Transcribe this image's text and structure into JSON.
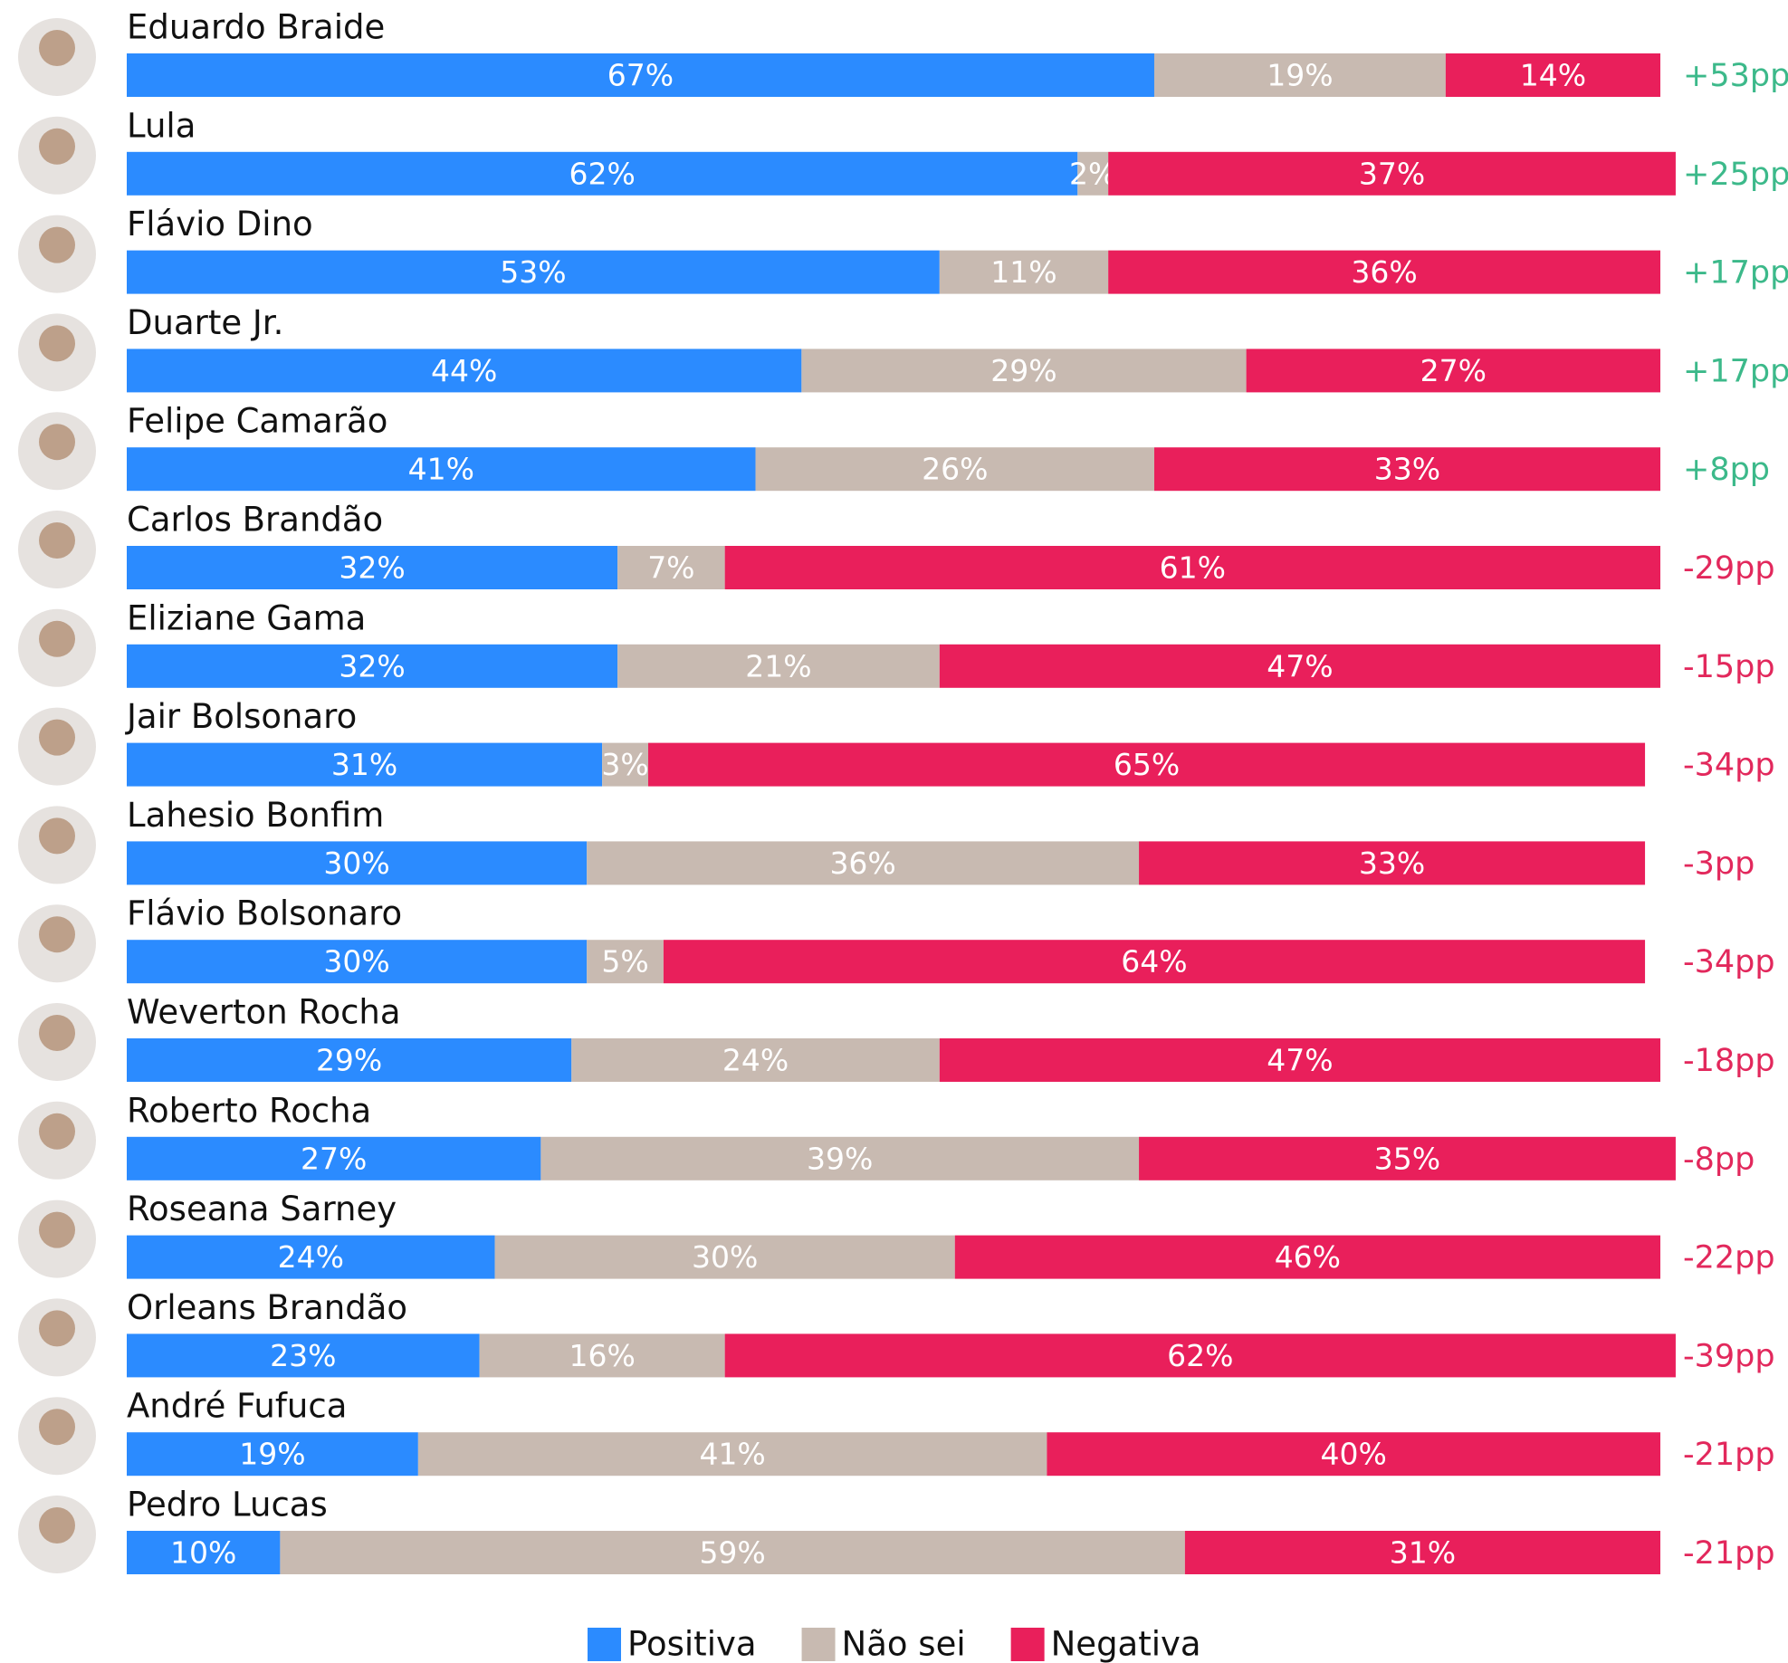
{
  "chart_data": {
    "type": "bar",
    "orientation": "horizontal",
    "stacked": true,
    "categories": [
      "Eduardo Braide",
      "Lula",
      "Flávio Dino",
      "Duarte Jr.",
      "Felipe Camarão",
      "Carlos Brandão",
      "Eliziane Gama",
      "Jair Bolsonaro",
      "Lahesio Bonfim",
      "Flávio Bolsonaro",
      "Weverton Rocha",
      "Roberto Rocha",
      "Roseana Sarney",
      "Orleans Brandão",
      "André Fufuca",
      "Pedro Lucas"
    ],
    "series": [
      {
        "name": "Positiva",
        "color": "#2b8bff",
        "values": [
          67,
          62,
          53,
          44,
          41,
          32,
          32,
          31,
          30,
          30,
          29,
          27,
          24,
          23,
          19,
          10
        ],
        "value_labels": [
          "67%",
          "62%",
          "53%",
          "44%",
          "41%",
          "32%",
          "32%",
          "31%",
          "30%",
          "30%",
          "29%",
          "27%",
          "24%",
          "23%",
          "19%",
          "10%"
        ]
      },
      {
        "name": "Não sei",
        "color": "#c8bab1",
        "values": [
          19,
          2,
          11,
          29,
          26,
          7,
          21,
          3,
          36,
          5,
          24,
          39,
          30,
          16,
          41,
          59
        ],
        "value_labels": [
          "19%",
          "2%",
          "11%",
          "29%",
          "26%",
          "7%",
          "21%",
          "3%",
          "36%",
          "5%",
          "24%",
          "39%",
          "30%",
          "16%",
          "41%",
          "59%"
        ]
      },
      {
        "name": "Negativa",
        "color": "#e91f5b",
        "values": [
          14,
          37,
          36,
          27,
          33,
          61,
          47,
          65,
          33,
          64,
          47,
          35,
          46,
          62,
          40,
          31
        ],
        "value_labels": [
          "14%",
          "37%",
          "36%",
          "27%",
          "33%",
          "61%",
          "47%",
          "65%",
          "33%",
          "64%",
          "47%",
          "35%",
          "46%",
          "62%",
          "40%",
          "31%"
        ]
      }
    ],
    "annotations": [
      "+53pp",
      "+25pp",
      "+17pp",
      "+17pp",
      "+8pp",
      "-29pp",
      "-15pp",
      "-34pp",
      "-3pp",
      "-34pp",
      "-18pp",
      "-8pp",
      "-22pp",
      "-39pp",
      "-21pp",
      "-21pp"
    ],
    "annotation_colors": {
      "positive": "#3cb98a",
      "negative": "#e2285c"
    },
    "xlim": [
      0,
      100
    ],
    "legend": "bottom"
  }
}
